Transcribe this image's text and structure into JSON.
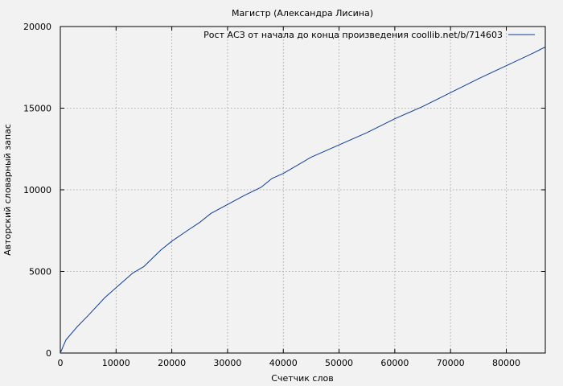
{
  "chart_data": {
    "type": "line",
    "title": "Магистр (Александра Лисина)",
    "xlabel": "Счетчик слов",
    "ylabel": "Авторский словарный запас",
    "xlim": [
      0,
      87000
    ],
    "ylim": [
      0,
      20000
    ],
    "xticks": [
      0,
      10000,
      20000,
      30000,
      40000,
      50000,
      60000,
      70000,
      80000
    ],
    "yticks": [
      0,
      5000,
      10000,
      15000,
      20000
    ],
    "grid": true,
    "legend_position": "top-right",
    "series": [
      {
        "name": "Рост АСЗ от начала до конца произведения coollib.net/b/714603",
        "color": "#0b3c9a",
        "x": [
          0,
          1000,
          3000,
          5000,
          8000,
          10000,
          13000,
          15000,
          18000,
          20000,
          23000,
          25000,
          27000,
          30000,
          33000,
          36000,
          38000,
          40000,
          45000,
          50000,
          55000,
          60000,
          65000,
          70000,
          75000,
          80000,
          85000,
          87000
        ],
        "y": [
          0,
          800,
          1600,
          2300,
          3400,
          4000,
          4900,
          5300,
          6300,
          6850,
          7550,
          8000,
          8550,
          9100,
          9650,
          10150,
          10700,
          11000,
          12000,
          12750,
          13500,
          14350,
          15100,
          15950,
          16800,
          17600,
          18400,
          18750
        ]
      }
    ]
  }
}
